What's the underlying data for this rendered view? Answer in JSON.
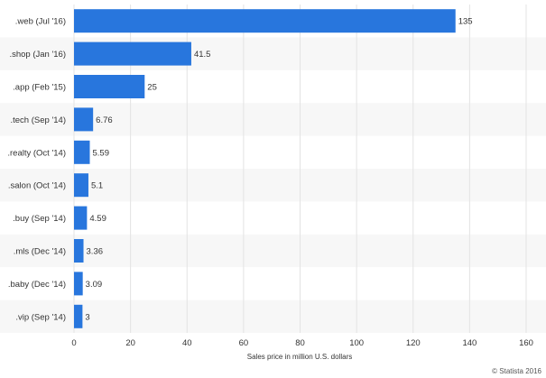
{
  "chart_data": {
    "type": "bar",
    "orientation": "horizontal",
    "categories": [
      ".web (Jul '16)",
      ".shop (Jan '16)",
      ".app (Feb '15)",
      ".tech (Sep '14)",
      ".realty (Oct '14)",
      ".salon (Oct '14)",
      ".buy (Sep '14)",
      ".mls (Dec '14)",
      ".baby (Dec '14)",
      ".vip (Sep '14)"
    ],
    "values": [
      135,
      41.5,
      25,
      6.76,
      5.59,
      5.1,
      4.59,
      3.36,
      3.09,
      3
    ],
    "value_labels": [
      "135",
      "41.5",
      "25",
      "6.76",
      "5.59",
      "5.1",
      "4.59",
      "3.36",
      "3.09",
      "3"
    ],
    "xlim": [
      0,
      160
    ],
    "x_ticks": [
      "0",
      "20",
      "40",
      "60",
      "80",
      "100",
      "120",
      "140",
      "160"
    ],
    "xlabel": "Sales price in million U.S. dollars",
    "ylabel": "",
    "grid": true,
    "bar_color": "#2876dd",
    "stripe_color": "#f7f7f7"
  },
  "credit": "© Statista 2016"
}
